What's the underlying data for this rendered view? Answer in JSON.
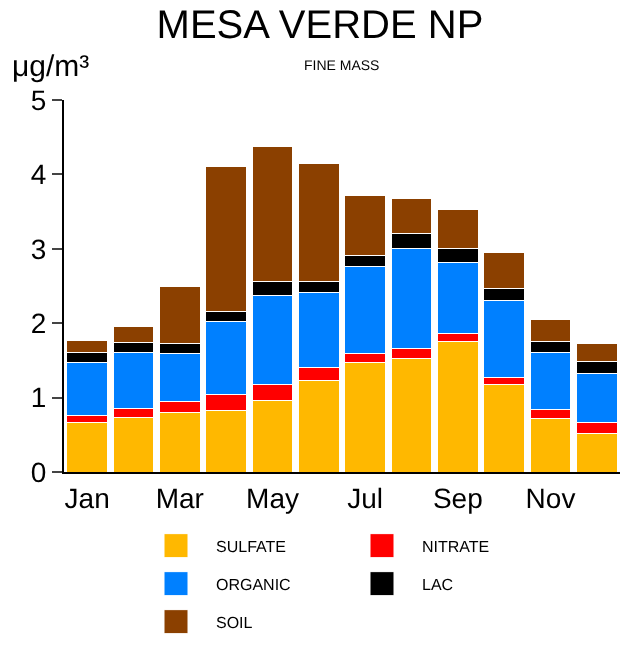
{
  "chart_data": {
    "type": "bar",
    "title": "MESA VERDE NP",
    "subtitle": "FINE MASS",
    "ylabel": "μg/m³",
    "stacked": true,
    "categories": [
      "Jan",
      null,
      "Mar",
      null,
      "May",
      null,
      "Jul",
      null,
      "Sep",
      null,
      "Nov",
      null
    ],
    "series": [
      {
        "name": "SULFATE",
        "color": "#ffb800",
        "values": [
          0.66,
          0.73,
          0.8,
          0.83,
          0.96,
          1.23,
          1.47,
          1.53,
          1.76,
          1.17,
          0.72,
          0.52
        ]
      },
      {
        "name": "NITRATE",
        "color": "#ff0000",
        "values": [
          0.1,
          0.12,
          0.15,
          0.21,
          0.22,
          0.17,
          0.12,
          0.13,
          0.1,
          0.1,
          0.12,
          0.15
        ]
      },
      {
        "name": "ORGANIC",
        "color": "#0080ff",
        "values": [
          0.71,
          0.76,
          0.64,
          0.98,
          1.19,
          1.01,
          1.17,
          1.35,
          0.96,
          1.03,
          0.76,
          0.66
        ]
      },
      {
        "name": "LAC",
        "color": "#000000",
        "values": [
          0.13,
          0.13,
          0.14,
          0.14,
          0.19,
          0.15,
          0.15,
          0.2,
          0.18,
          0.17,
          0.16,
          0.16
        ]
      },
      {
        "name": "SOIL",
        "color": "#8b4000",
        "values": [
          0.17,
          0.22,
          0.77,
          1.94,
          1.81,
          1.58,
          0.81,
          0.46,
          0.53,
          0.48,
          0.29,
          0.24
        ]
      }
    ],
    "ylim": [
      0,
      5
    ],
    "yticks": [
      0,
      1,
      2,
      3,
      4,
      5
    ],
    "legend": "bottom"
  }
}
